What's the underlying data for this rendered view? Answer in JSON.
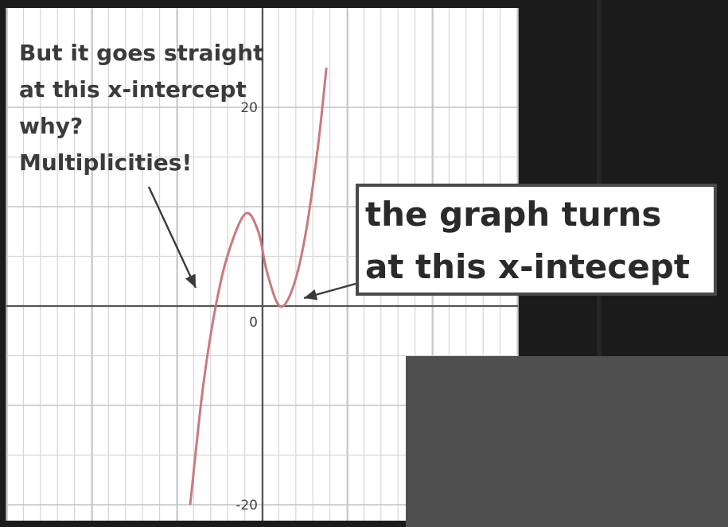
{
  "chart_data": {
    "type": "line",
    "title": "",
    "xlabel": "",
    "ylabel": "",
    "xlim": [
      -3.1,
      3.1
    ],
    "ylim": [
      -21,
      24
    ],
    "y_ticks_labeled": [
      {
        "value": 20,
        "label": "20"
      },
      {
        "value": 0,
        "label": "0"
      },
      {
        "value": -20,
        "label": "-20"
      }
    ],
    "grid": true,
    "series": [
      {
        "color": "#c97a7c",
        "points": [
          {
            "x": -0.85,
            "y": -20
          },
          {
            "x": -0.7,
            "y": -8.2
          },
          {
            "x": -0.55,
            "y": 0
          },
          {
            "x": -0.4,
            "y": 5.4
          },
          {
            "x": -0.2,
            "y": 9.3
          },
          {
            "x": -0.05,
            "y": 7.5
          },
          {
            "x": 0.05,
            "y": 3.5
          },
          {
            "x": 0.2,
            "y": 0
          },
          {
            "x": 0.35,
            "y": 1.7
          },
          {
            "x": 0.5,
            "y": 7
          },
          {
            "x": 0.65,
            "y": 16
          },
          {
            "x": 0.75,
            "y": 24
          }
        ]
      }
    ],
    "annotations": [
      {
        "id": "straight",
        "lines": [
          "But it goes straight",
          "at this x-intercept",
          "why?",
          "Multiplicities!"
        ],
        "target": {
          "x": -0.55,
          "y": 0
        }
      },
      {
        "id": "turns",
        "lines": [
          "the graph turns",
          "at this x-intecept"
        ],
        "target": {
          "x": 0.2,
          "y": 0
        }
      }
    ]
  },
  "colors": {
    "background": "#1b1b1b",
    "plot_background": "#ffffff",
    "panel_gray": "#4f4f4f",
    "curve": "#c97a7c"
  }
}
